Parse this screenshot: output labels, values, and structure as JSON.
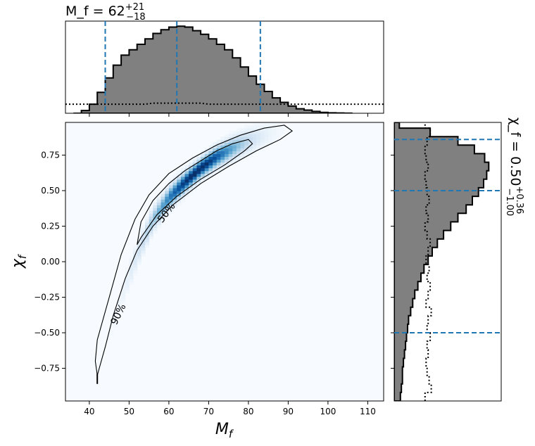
{
  "chart_data": [
    {
      "type": "heatmap",
      "panel": "joint",
      "xlabel": "M_f",
      "ylabel": "χ_f",
      "xlim": [
        34,
        114
      ],
      "ylim": [
        -0.98,
        0.98
      ],
      "xticks": [
        40,
        50,
        60,
        70,
        80,
        90,
        100,
        110
      ],
      "yticks": [
        -0.75,
        -0.5,
        -0.25,
        0.0,
        0.25,
        0.5,
        0.75
      ],
      "ytick_labels": [
        "−0.75",
        "−0.50",
        "−0.25",
        "0.00",
        "0.25",
        "0.50",
        "0.75"
      ],
      "colormap": "Blues",
      "ridge": {
        "x": [
          42,
          45,
          48,
          52,
          56,
          60,
          64,
          68,
          72,
          76,
          80,
          85,
          89
        ],
        "y": [
          -0.8,
          -0.55,
          -0.25,
          0.05,
          0.3,
          0.45,
          0.56,
          0.66,
          0.74,
          0.8,
          0.85,
          0.9,
          0.93
        ]
      },
      "contours": [
        {
          "label": "50%",
          "x": [
            52,
            53,
            56,
            60,
            64,
            68,
            72,
            76,
            80,
            81,
            79,
            74,
            68,
            62,
            57,
            53,
            52
          ],
          "y": [
            0.12,
            0.28,
            0.43,
            0.55,
            0.64,
            0.71,
            0.78,
            0.83,
            0.86,
            0.83,
            0.78,
            0.68,
            0.58,
            0.46,
            0.33,
            0.17,
            0.12
          ]
        },
        {
          "label": "90%",
          "x": [
            42,
            41.5,
            42,
            45,
            48,
            51.5,
            55,
            60,
            66,
            72,
            78,
            84,
            89,
            91,
            88,
            82,
            75,
            68,
            61,
            56,
            52,
            49,
            46,
            44,
            42.5,
            42
          ],
          "y": [
            -0.8,
            -0.7,
            -0.55,
            -0.25,
            0.05,
            0.3,
            0.47,
            0.62,
            0.73,
            0.82,
            0.89,
            0.94,
            0.96,
            0.92,
            0.86,
            0.78,
            0.67,
            0.55,
            0.4,
            0.25,
            0.08,
            -0.12,
            -0.38,
            -0.6,
            -0.75,
            -0.8
          ]
        }
      ]
    },
    {
      "type": "bar",
      "panel": "top-marginal",
      "title": "M_f = 62 +21 −18",
      "title_main": "M_f = 62",
      "title_sup": "+21",
      "title_sub": "−18",
      "bin_edges": [
        36,
        38,
        40,
        42,
        44,
        46,
        48,
        50,
        52,
        54,
        56,
        58,
        60,
        62,
        64,
        66,
        68,
        70,
        72,
        74,
        76,
        78,
        80,
        82,
        84,
        86,
        88,
        90,
        92,
        94,
        96,
        98,
        100,
        102,
        104,
        106
      ],
      "values": [
        0,
        0.03,
        0.1,
        0.23,
        0.39,
        0.53,
        0.64,
        0.7,
        0.76,
        0.82,
        0.88,
        0.92,
        0.95,
        0.96,
        0.95,
        0.91,
        0.87,
        0.82,
        0.76,
        0.7,
        0.61,
        0.51,
        0.41,
        0.32,
        0.24,
        0.17,
        0.12,
        0.08,
        0.05,
        0.035,
        0.02,
        0.01,
        0.005,
        0.003,
        0.001
      ],
      "prior_level": 0.1,
      "median": 62,
      "interval": [
        44,
        83
      ]
    },
    {
      "type": "bar",
      "panel": "right-marginal",
      "title": "χ_f = 0.50 +0.36 −1.00",
      "title_main": "χ_f = 0.50",
      "title_sup": "+0.36",
      "title_sub": "−1.00",
      "orientation": "horizontal",
      "bin_edges": [
        -0.98,
        -0.92,
        -0.86,
        -0.8,
        -0.74,
        -0.68,
        -0.62,
        -0.56,
        -0.5,
        -0.44,
        -0.38,
        -0.32,
        -0.26,
        -0.2,
        -0.14,
        -0.08,
        -0.02,
        0.04,
        0.1,
        0.16,
        0.22,
        0.28,
        0.34,
        0.4,
        0.46,
        0.52,
        0.58,
        0.64,
        0.7,
        0.76,
        0.82,
        0.88,
        0.94,
        0.98
      ],
      "values": [
        0.06,
        0.07,
        0.08,
        0.08,
        0.09,
        0.1,
        0.11,
        0.12,
        0.13,
        0.14,
        0.16,
        0.18,
        0.2,
        0.23,
        0.26,
        0.29,
        0.33,
        0.37,
        0.42,
        0.48,
        0.55,
        0.62,
        0.7,
        0.76,
        0.82,
        0.87,
        0.9,
        0.92,
        0.88,
        0.78,
        0.62,
        0.35,
        0.05
      ],
      "prior": [
        0.3,
        0.36,
        0.34,
        0.32,
        0.31,
        0.33,
        0.32,
        0.35,
        0.32,
        0.33,
        0.36,
        0.31,
        0.33,
        0.35,
        0.32,
        0.34,
        0.31,
        0.33,
        0.35,
        0.32,
        0.3,
        0.33,
        0.31,
        0.34,
        0.32,
        0.31,
        0.3,
        0.33,
        0.31,
        0.3,
        0.32,
        0.35,
        0.3
      ],
      "median": 0.5,
      "interval": [
        -0.5,
        0.86
      ]
    }
  ],
  "colors": {
    "marginal_fill": "#808080",
    "quantile_line": "#1f77b4",
    "contour_line": "#000000",
    "background": "#ffffff"
  }
}
